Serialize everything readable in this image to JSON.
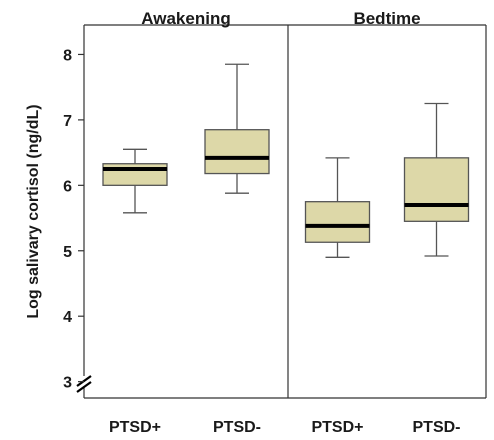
{
  "chart_data": {
    "type": "boxplot",
    "ylabel": "Log salivary cortisol (ng/dL)",
    "ylim": [
      2.75,
      8.45
    ],
    "yticks": [
      3,
      4,
      5,
      6,
      7,
      8
    ],
    "axis_break": true,
    "box_fill": "#ddd8a8",
    "line_color": "#555555",
    "median_color": "#000000",
    "panels": [
      {
        "title": "Awakening",
        "groups": [
          {
            "label": "PTSD+",
            "whisker_low": 5.58,
            "q1": 6.0,
            "median": 6.25,
            "q3": 6.33,
            "whisker_high": 6.55
          },
          {
            "label": "PTSD-",
            "whisker_low": 5.88,
            "q1": 6.18,
            "median": 6.42,
            "q3": 6.85,
            "whisker_high": 7.85
          }
        ]
      },
      {
        "title": "Bedtime",
        "groups": [
          {
            "label": "PTSD+",
            "whisker_low": 4.9,
            "q1": 5.13,
            "median": 5.38,
            "q3": 5.75,
            "whisker_high": 6.42
          },
          {
            "label": "PTSD-",
            "whisker_low": 4.92,
            "q1": 5.45,
            "median": 5.7,
            "q3": 6.42,
            "whisker_high": 7.25
          }
        ]
      }
    ]
  }
}
